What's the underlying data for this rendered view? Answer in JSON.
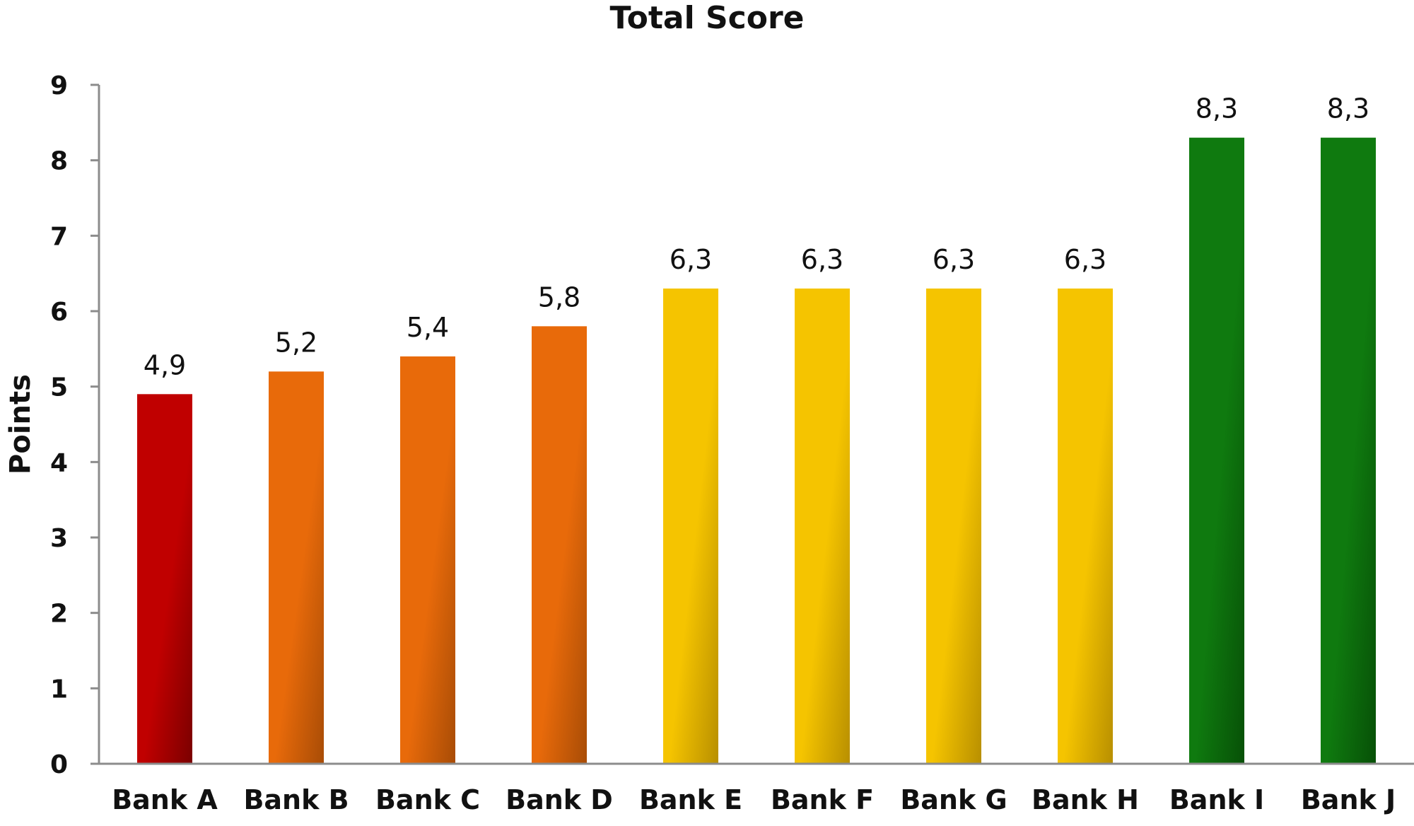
{
  "chart_data": {
    "type": "bar",
    "title": "Total Score",
    "xlabel": "",
    "ylabel": "Points",
    "ylim": [
      0,
      9
    ],
    "yticks": [
      "0",
      "1",
      "2",
      "3",
      "4",
      "5",
      "6",
      "7",
      "8",
      "9"
    ],
    "grid": false,
    "legend": "none",
    "categories": [
      "Bank A",
      "Bank B",
      "Bank C",
      "Bank D",
      "Bank E",
      "Bank F",
      "Bank G",
      "Bank H",
      "Bank I",
      "Bank J"
    ],
    "values": [
      4.9,
      5.2,
      5.4,
      5.8,
      6.3,
      6.3,
      6.3,
      6.3,
      8.3,
      8.3
    ],
    "value_labels": [
      "4,9",
      "5,2",
      "5,4",
      "5,8",
      "6,3",
      "6,3",
      "6,3",
      "6,3",
      "8,3",
      "8,3"
    ],
    "bar_colors": [
      "#c00000",
      "#e86a0a",
      "#e86a0a",
      "#e86a0a",
      "#f5c400",
      "#f5c400",
      "#f5c400",
      "#f5c400",
      "#0f7a0f",
      "#0f7a0f"
    ],
    "bar_colors_dark": [
      "#7a0000",
      "#a84c06",
      "#a84c06",
      "#a84c06",
      "#b88f00",
      "#b88f00",
      "#b88f00",
      "#b88f00",
      "#075007",
      "#075007"
    ]
  }
}
